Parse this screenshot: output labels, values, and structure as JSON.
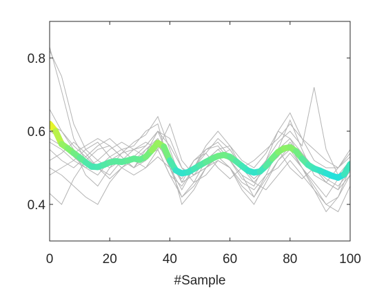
{
  "chart_data": {
    "type": "line",
    "title": "",
    "xlabel": "#Sample",
    "ylabel": "",
    "xlim": [
      0,
      100
    ],
    "ylim": [
      0.3,
      0.9
    ],
    "xticks": [
      0,
      20,
      40,
      60,
      80,
      100
    ],
    "yticks": [
      0.4,
      0.6,
      0.8
    ],
    "xtick_labels": [
      "0",
      "20",
      "40",
      "60",
      "80",
      "100"
    ],
    "ytick_labels": [
      "0.4",
      "0.6",
      "0.8"
    ],
    "grid": false,
    "background_series_color": "#b3b3b3",
    "highlight_colormap": [
      "#20e0e0",
      "#80f070",
      "#f5f520"
    ],
    "background_series": [
      {
        "x": [
          0,
          4,
          8,
          12,
          16,
          20,
          24,
          28,
          32,
          36,
          40,
          44,
          48,
          52,
          56,
          60,
          64,
          68,
          72,
          76,
          80,
          84,
          88,
          92,
          96,
          100
        ],
        "values": [
          0.83,
          0.71,
          0.58,
          0.52,
          0.5,
          0.53,
          0.55,
          0.56,
          0.6,
          0.62,
          0.5,
          0.44,
          0.5,
          0.55,
          0.56,
          0.52,
          0.47,
          0.45,
          0.52,
          0.6,
          0.58,
          0.52,
          0.5,
          0.49,
          0.47,
          0.5
        ]
      },
      {
        "x": [
          0,
          4,
          8,
          12,
          16,
          20,
          24,
          28,
          32,
          36,
          40,
          44,
          48,
          52,
          56,
          60,
          64,
          68,
          72,
          76,
          80,
          84,
          88,
          92,
          96,
          100
        ],
        "values": [
          0.82,
          0.75,
          0.62,
          0.55,
          0.52,
          0.5,
          0.54,
          0.57,
          0.59,
          0.64,
          0.55,
          0.46,
          0.48,
          0.52,
          0.55,
          0.56,
          0.5,
          0.47,
          0.5,
          0.55,
          0.63,
          0.55,
          0.48,
          0.46,
          0.44,
          0.52
        ]
      },
      {
        "x": [
          0,
          4,
          8,
          12,
          16,
          20,
          24,
          28,
          32,
          36,
          40,
          44,
          48,
          52,
          56,
          60,
          64,
          68,
          72,
          76,
          80,
          84,
          88,
          92,
          96,
          100
        ],
        "values": [
          0.66,
          0.6,
          0.55,
          0.48,
          0.45,
          0.5,
          0.52,
          0.5,
          0.55,
          0.58,
          0.52,
          0.4,
          0.44,
          0.5,
          0.52,
          0.5,
          0.45,
          0.42,
          0.47,
          0.52,
          0.55,
          0.5,
          0.45,
          0.4,
          0.42,
          0.48
        ]
      },
      {
        "x": [
          0,
          4,
          8,
          12,
          16,
          20,
          24,
          28,
          32,
          36,
          40,
          44,
          48,
          52,
          56,
          60,
          64,
          68,
          72,
          76,
          80,
          84,
          88,
          92,
          96,
          100
        ],
        "values": [
          0.6,
          0.58,
          0.53,
          0.5,
          0.48,
          0.52,
          0.54,
          0.55,
          0.56,
          0.6,
          0.52,
          0.48,
          0.5,
          0.54,
          0.58,
          0.55,
          0.5,
          0.48,
          0.52,
          0.57,
          0.6,
          0.56,
          0.72,
          0.55,
          0.48,
          0.52
        ]
      },
      {
        "x": [
          0,
          4,
          8,
          12,
          16,
          20,
          24,
          28,
          32,
          36,
          40,
          44,
          48,
          52,
          56,
          60,
          64,
          68,
          72,
          76,
          80,
          84,
          88,
          92,
          96,
          100
        ],
        "values": [
          0.43,
          0.4,
          0.47,
          0.52,
          0.55,
          0.56,
          0.53,
          0.5,
          0.54,
          0.6,
          0.56,
          0.5,
          0.48,
          0.5,
          0.54,
          0.52,
          0.48,
          0.46,
          0.5,
          0.55,
          0.58,
          0.54,
          0.5,
          0.46,
          0.5,
          0.54
        ]
      },
      {
        "x": [
          0,
          4,
          8,
          12,
          16,
          20,
          24,
          28,
          32,
          36,
          40,
          44,
          48,
          52,
          56,
          60,
          64,
          68,
          72,
          76,
          80,
          84,
          88,
          92,
          96,
          100
        ],
        "values": [
          0.5,
          0.48,
          0.45,
          0.42,
          0.4,
          0.46,
          0.5,
          0.52,
          0.55,
          0.57,
          0.5,
          0.42,
          0.45,
          0.5,
          0.53,
          0.5,
          0.44,
          0.4,
          0.46,
          0.52,
          0.56,
          0.5,
          0.44,
          0.38,
          0.42,
          0.5
        ]
      },
      {
        "x": [
          0,
          4,
          8,
          12,
          16,
          20,
          24,
          28,
          32,
          36,
          40,
          44,
          48,
          52,
          56,
          60,
          64,
          68,
          72,
          76,
          80,
          84,
          88,
          92,
          96,
          100
        ],
        "values": [
          0.57,
          0.55,
          0.52,
          0.5,
          0.52,
          0.55,
          0.57,
          0.55,
          0.53,
          0.55,
          0.48,
          0.45,
          0.5,
          0.56,
          0.6,
          0.56,
          0.52,
          0.5,
          0.54,
          0.6,
          0.65,
          0.58,
          0.52,
          0.5,
          0.5,
          0.55
        ]
      },
      {
        "x": [
          0,
          4,
          8,
          12,
          16,
          20,
          24,
          28,
          32,
          36,
          40,
          44,
          48,
          52,
          56,
          60,
          64,
          68,
          72,
          76,
          80,
          84,
          88,
          92,
          96,
          100
        ],
        "values": [
          0.55,
          0.52,
          0.5,
          0.53,
          0.56,
          0.58,
          0.55,
          0.52,
          0.5,
          0.53,
          0.5,
          0.47,
          0.52,
          0.55,
          0.57,
          0.53,
          0.5,
          0.47,
          0.5,
          0.53,
          0.57,
          0.53,
          0.5,
          0.47,
          0.45,
          0.49
        ]
      },
      {
        "x": [
          0,
          4,
          8,
          12,
          16,
          20,
          24,
          28,
          32,
          36,
          40,
          44,
          48,
          52,
          56,
          60,
          64,
          68,
          72,
          76,
          80,
          84,
          88,
          92,
          96,
          100
        ],
        "values": [
          0.62,
          0.6,
          0.56,
          0.53,
          0.5,
          0.47,
          0.5,
          0.53,
          0.56,
          0.6,
          0.58,
          0.5,
          0.46,
          0.48,
          0.52,
          0.5,
          0.46,
          0.44,
          0.48,
          0.5,
          0.54,
          0.5,
          0.46,
          0.42,
          0.47,
          0.5
        ]
      },
      {
        "x": [
          0,
          4,
          8,
          12,
          16,
          20,
          24,
          28,
          32,
          36,
          40,
          44,
          48,
          52,
          56,
          60,
          64,
          68,
          72,
          76,
          80,
          84,
          88,
          92,
          96,
          100
        ],
        "values": [
          0.48,
          0.5,
          0.52,
          0.55,
          0.57,
          0.53,
          0.5,
          0.48,
          0.5,
          0.55,
          0.62,
          0.52,
          0.48,
          0.5,
          0.53,
          0.55,
          0.5,
          0.46,
          0.44,
          0.48,
          0.52,
          0.48,
          0.44,
          0.4,
          0.38,
          0.45
        ]
      },
      {
        "x": [
          0,
          4,
          8,
          12,
          16,
          20,
          24,
          28,
          32,
          36,
          40,
          44,
          48,
          52,
          56,
          60,
          64,
          68,
          72,
          76,
          80,
          84,
          88,
          92,
          96,
          100
        ],
        "values": [
          0.58,
          0.56,
          0.54,
          0.56,
          0.58,
          0.56,
          0.53,
          0.5,
          0.52,
          0.56,
          0.52,
          0.46,
          0.52,
          0.54,
          0.5,
          0.47,
          0.5,
          0.52,
          0.55,
          0.58,
          0.62,
          0.58,
          0.55,
          0.52,
          0.5,
          0.53
        ]
      },
      {
        "x": [
          0,
          4,
          8,
          12,
          16,
          20,
          24,
          28,
          32,
          36,
          40,
          44,
          48,
          52,
          56,
          60,
          64,
          68,
          72,
          76,
          80,
          84,
          88,
          92,
          96,
          100
        ],
        "values": [
          0.52,
          0.54,
          0.57,
          0.54,
          0.5,
          0.48,
          0.52,
          0.55,
          0.57,
          0.55,
          0.48,
          0.42,
          0.46,
          0.52,
          0.55,
          0.52,
          0.48,
          0.42,
          0.48,
          0.55,
          0.5,
          0.47,
          0.5,
          0.46,
          0.44,
          0.48
        ]
      }
    ],
    "highlight_series": {
      "x": [
        0,
        2,
        4,
        6,
        8,
        10,
        12,
        14,
        16,
        18,
        20,
        22,
        24,
        26,
        28,
        30,
        32,
        34,
        36,
        38,
        40,
        42,
        44,
        46,
        48,
        50,
        52,
        54,
        56,
        58,
        60,
        62,
        64,
        66,
        68,
        70,
        72,
        74,
        76,
        78,
        80,
        82,
        84,
        86,
        88,
        90,
        92,
        94,
        96,
        98,
        100
      ],
      "values": [
        0.62,
        0.6,
        0.565,
        0.553,
        0.54,
        0.528,
        0.515,
        0.503,
        0.502,
        0.508,
        0.515,
        0.518,
        0.516,
        0.52,
        0.525,
        0.522,
        0.53,
        0.548,
        0.568,
        0.558,
        0.52,
        0.493,
        0.485,
        0.488,
        0.497,
        0.507,
        0.516,
        0.525,
        0.532,
        0.535,
        0.53,
        0.518,
        0.505,
        0.492,
        0.487,
        0.49,
        0.505,
        0.525,
        0.543,
        0.553,
        0.556,
        0.545,
        0.525,
        0.508,
        0.498,
        0.492,
        0.485,
        0.478,
        0.473,
        0.482,
        0.51
      ]
    }
  }
}
